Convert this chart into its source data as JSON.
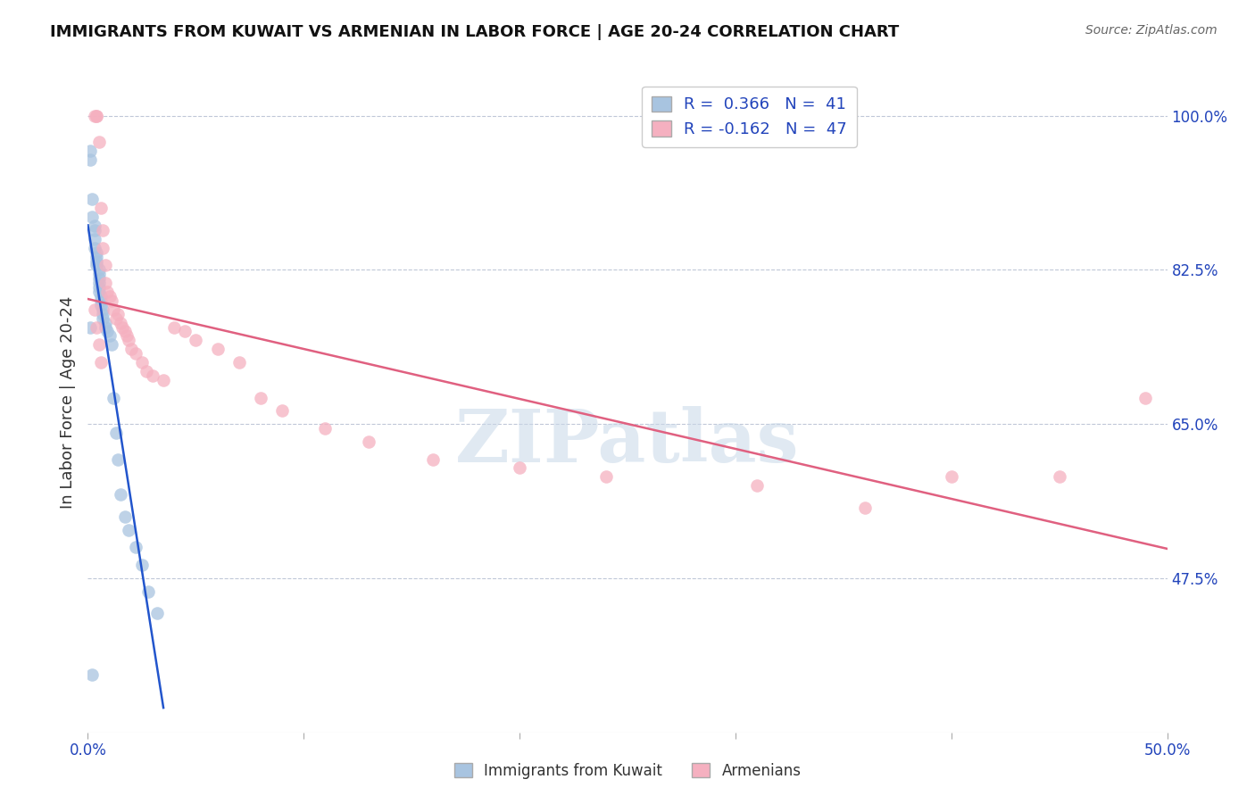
{
  "title": "IMMIGRANTS FROM KUWAIT VS ARMENIAN IN LABOR FORCE | AGE 20-24 CORRELATION CHART",
  "source": "Source: ZipAtlas.com",
  "ylabel": "In Labor Force | Age 20-24",
  "xlim": [
    0.0,
    0.5
  ],
  "ylim": [
    0.3,
    1.05
  ],
  "yticks_right": [
    0.475,
    0.65,
    0.825,
    1.0
  ],
  "ytickslabels_right": [
    "47.5%",
    "65.0%",
    "82.5%",
    "100.0%"
  ],
  "blue_color": "#a8c4e0",
  "pink_color": "#f5b0c0",
  "blue_line_color": "#2255cc",
  "pink_line_color": "#e06080",
  "kuwait_x": [
    0.001,
    0.001,
    0.002,
    0.002,
    0.003,
    0.003,
    0.003,
    0.003,
    0.004,
    0.004,
    0.004,
    0.004,
    0.005,
    0.005,
    0.005,
    0.005,
    0.005,
    0.005,
    0.006,
    0.006,
    0.006,
    0.007,
    0.007,
    0.007,
    0.008,
    0.008,
    0.009,
    0.01,
    0.011,
    0.012,
    0.013,
    0.014,
    0.015,
    0.017,
    0.019,
    0.022,
    0.025,
    0.028,
    0.032,
    0.002,
    0.001
  ],
  "kuwait_y": [
    0.96,
    0.95,
    0.905,
    0.885,
    0.875,
    0.87,
    0.86,
    0.85,
    0.845,
    0.84,
    0.835,
    0.83,
    0.825,
    0.82,
    0.815,
    0.81,
    0.805,
    0.8,
    0.795,
    0.79,
    0.785,
    0.78,
    0.775,
    0.77,
    0.765,
    0.76,
    0.755,
    0.75,
    0.74,
    0.68,
    0.64,
    0.61,
    0.57,
    0.545,
    0.53,
    0.51,
    0.49,
    0.46,
    0.435,
    0.365,
    0.76
  ],
  "armenian_x": [
    0.003,
    0.004,
    0.004,
    0.005,
    0.006,
    0.007,
    0.007,
    0.008,
    0.008,
    0.009,
    0.01,
    0.011,
    0.012,
    0.013,
    0.014,
    0.015,
    0.016,
    0.017,
    0.018,
    0.019,
    0.02,
    0.022,
    0.025,
    0.027,
    0.03,
    0.035,
    0.04,
    0.045,
    0.05,
    0.06,
    0.07,
    0.08,
    0.09,
    0.11,
    0.13,
    0.16,
    0.2,
    0.24,
    0.31,
    0.36,
    0.4,
    0.45,
    0.49,
    0.003,
    0.004,
    0.005,
    0.006
  ],
  "armenian_y": [
    1.0,
    1.0,
    1.0,
    0.97,
    0.895,
    0.87,
    0.85,
    0.83,
    0.81,
    0.8,
    0.795,
    0.79,
    0.78,
    0.77,
    0.775,
    0.765,
    0.76,
    0.755,
    0.75,
    0.745,
    0.735,
    0.73,
    0.72,
    0.71,
    0.705,
    0.7,
    0.76,
    0.755,
    0.745,
    0.735,
    0.72,
    0.68,
    0.665,
    0.645,
    0.63,
    0.61,
    0.6,
    0.59,
    0.58,
    0.555,
    0.59,
    0.59,
    0.68,
    0.78,
    0.76,
    0.74,
    0.72
  ],
  "legend_text": [
    [
      "R =  0.366",
      "N =  41"
    ],
    [
      "R = -0.162",
      "N =  47"
    ]
  ]
}
